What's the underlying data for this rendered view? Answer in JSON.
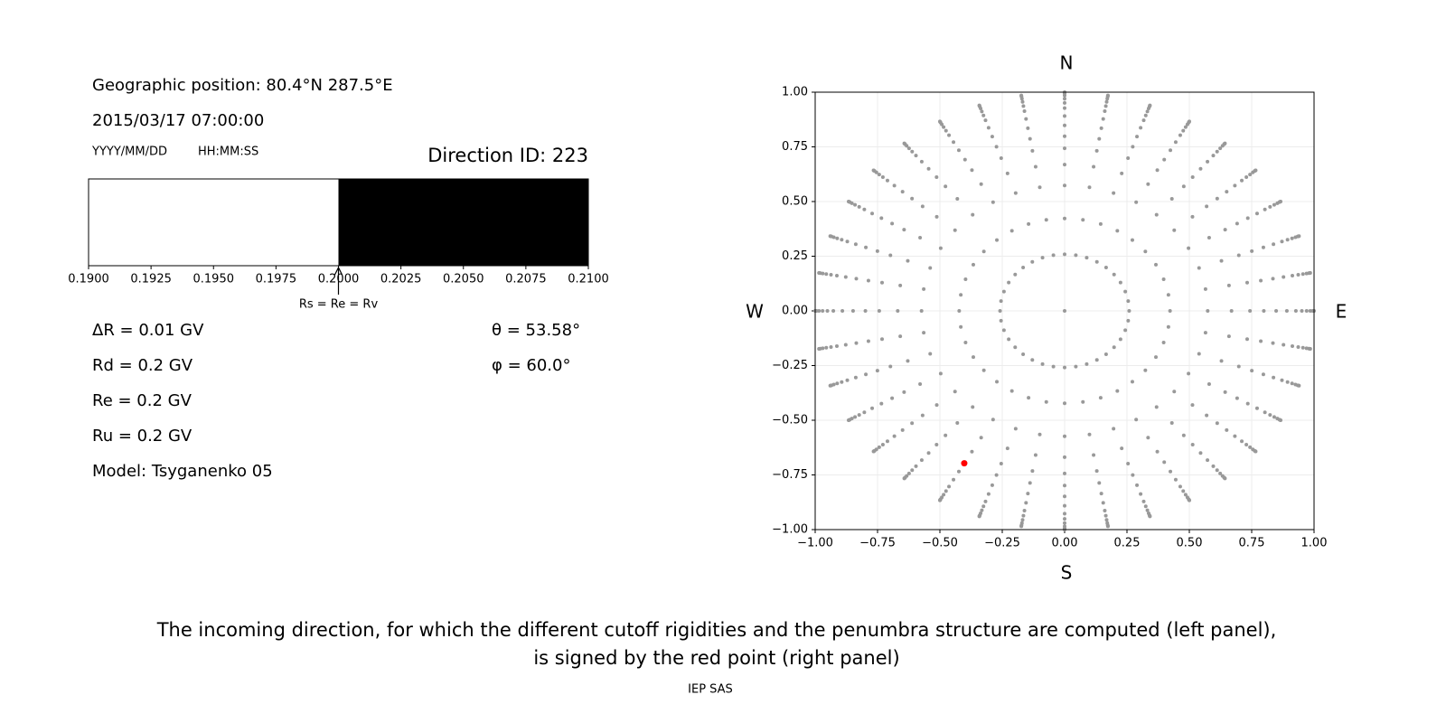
{
  "left_panel": {
    "position": "Geographic position: 80.4°N 287.5°E",
    "datetime": "2015/03/17 07:00:00",
    "date_format": "YYYY/MM/DD",
    "time_format": "HH:MM:SS",
    "direction_id": "Direction ID: 223",
    "penumbra": {
      "xlim": [
        0.19,
        0.21
      ],
      "xticks": [
        {
          "value": 0.19,
          "label": "0.1900"
        },
        {
          "value": 0.1925,
          "label": "0.1925"
        },
        {
          "value": 0.195,
          "label": "0.1950"
        },
        {
          "value": 0.1975,
          "label": "0.1975"
        },
        {
          "value": 0.2,
          "label": "0.2000"
        },
        {
          "value": 0.2025,
          "label": "0.2025"
        },
        {
          "value": 0.205,
          "label": "0.2050"
        },
        {
          "value": 0.2075,
          "label": "0.2075"
        },
        {
          "value": 0.21,
          "label": "0.2100"
        }
      ],
      "segments": [
        {
          "from": 0.19,
          "to": 0.2,
          "color": "#ffffff"
        },
        {
          "from": 0.2,
          "to": 0.21,
          "color": "#000000"
        }
      ],
      "marker": {
        "value": 0.2,
        "label": "Rs = Re = Rv"
      }
    },
    "parameters": [
      "ΔR = 0.01 GV",
      "Rd = 0.2 GV",
      "Re = 0.2 GV",
      "Ru = 0.2 GV",
      "Model: Tsyganenko 05"
    ],
    "angles": [
      "θ = 53.58°",
      "φ = 60.0°"
    ]
  },
  "chart_data": {
    "type": "scatter",
    "xlim": [
      -1,
      1
    ],
    "ylim": [
      -1,
      1
    ],
    "xticks": [
      {
        "value": -1,
        "label": "−1.00"
      },
      {
        "value": -0.75,
        "label": "−0.75"
      },
      {
        "value": -0.5,
        "label": "−0.50"
      },
      {
        "value": -0.25,
        "label": "−0.25"
      },
      {
        "value": 0,
        "label": "0.00"
      },
      {
        "value": 0.25,
        "label": "0.25"
      },
      {
        "value": 0.5,
        "label": "0.50"
      },
      {
        "value": 0.75,
        "label": "0.75"
      },
      {
        "value": 1,
        "label": "1.00"
      }
    ],
    "yticks": [
      {
        "value": -1,
        "label": "−1.00"
      },
      {
        "value": -0.75,
        "label": "−0.75"
      },
      {
        "value": -0.5,
        "label": "−0.50"
      },
      {
        "value": -0.25,
        "label": "−0.25"
      },
      {
        "value": 0,
        "label": "0.00"
      },
      {
        "value": 0.25,
        "label": "0.25"
      },
      {
        "value": 0.5,
        "label": "0.50"
      },
      {
        "value": 0.75,
        "label": "0.75"
      },
      {
        "value": 1,
        "label": "1.00"
      }
    ],
    "grid": true,
    "compass": {
      "north": "N",
      "south": "S",
      "west": "W",
      "east": "E"
    },
    "sky_grid": {
      "color": "#999999",
      "azimuths": [
        0,
        10,
        20,
        30,
        40,
        50,
        60,
        70,
        80,
        90,
        100,
        110,
        120,
        130,
        140,
        150,
        160,
        170,
        180,
        190,
        200,
        210,
        220,
        230,
        240,
        250,
        260,
        270,
        280,
        290,
        300,
        310,
        320,
        330,
        340,
        350
      ],
      "zeniths": [
        0,
        15,
        25,
        35,
        42,
        48,
        53,
        58,
        63,
        68,
        72,
        76,
        80,
        84,
        87,
        90
      ]
    },
    "selected": {
      "color": "#ff0000",
      "zenith": 53.58,
      "azimuth": 60
    }
  },
  "caption": [
    "The incoming direction, for which the different cutoff rigidities and the penumbra structure are computed (left panel),",
    "is signed by the red point (right panel)"
  ],
  "credit": "IEP SAS"
}
